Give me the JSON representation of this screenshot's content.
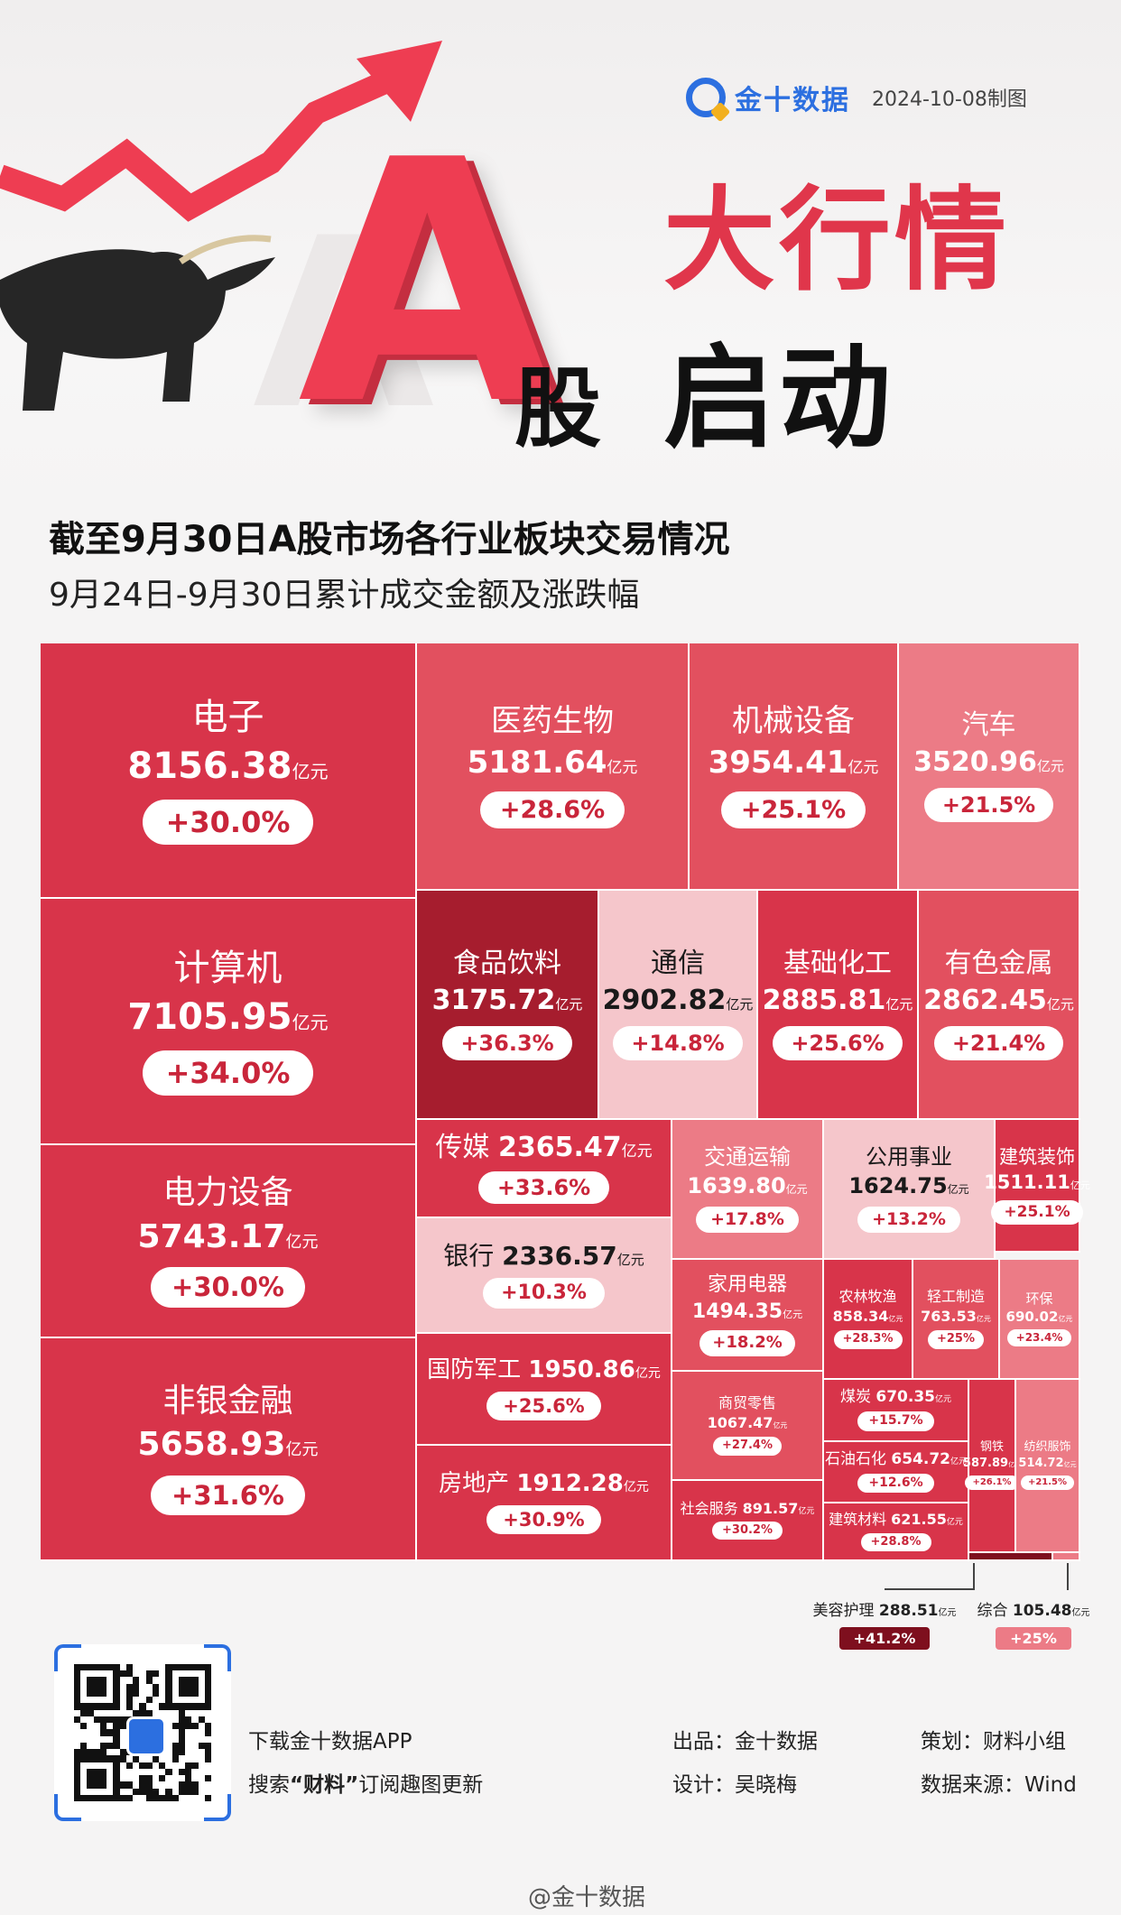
{
  "header": {
    "brand": "金十数据",
    "date": "2024-10-08制图",
    "big_letter": "A",
    "gu": "股",
    "title_line1": "大行情",
    "title_line2": "启动",
    "headline": "截至9月30日A股市场各行业板块交易情况",
    "subline": "9月24日-9月30日累计成交金额及涨跌幅"
  },
  "unit": "亿元",
  "colors": {
    "deep": "#a61d2e",
    "main": "#d8344a",
    "medium": "#e2505f",
    "light": "#ec7b86",
    "pale": "#f5c6cb",
    "darkest": "#7e0f1e"
  },
  "chart_data": {
    "type": "treemap",
    "title": "截至9月30日A股市场各行业板块交易情况",
    "subtitle": "9月24日-9月30日累计成交金额及涨跌幅",
    "value_unit": "亿元",
    "items": [
      {
        "name": "电子",
        "amount": 8156.38,
        "change": "+30.0%"
      },
      {
        "name": "计算机",
        "amount": 7105.95,
        "change": "+34.0%"
      },
      {
        "name": "电力设备",
        "amount": 5743.17,
        "change": "+30.0%"
      },
      {
        "name": "非银金融",
        "amount": 5658.93,
        "change": "+31.6%"
      },
      {
        "name": "医药生物",
        "amount": 5181.64,
        "change": "+28.6%"
      },
      {
        "name": "机械设备",
        "amount": 3954.41,
        "change": "+25.1%"
      },
      {
        "name": "汽车",
        "amount": 3520.96,
        "change": "+21.5%"
      },
      {
        "name": "食品饮料",
        "amount": 3175.72,
        "change": "+36.3%"
      },
      {
        "name": "通信",
        "amount": 2902.82,
        "change": "+14.8%"
      },
      {
        "name": "基础化工",
        "amount": 2885.81,
        "change": "+25.6%"
      },
      {
        "name": "有色金属",
        "amount": 2862.45,
        "change": "+21.4%"
      },
      {
        "name": "传媒",
        "amount": 2365.47,
        "change": "+33.6%"
      },
      {
        "name": "银行",
        "amount": 2336.57,
        "change": "+10.3%"
      },
      {
        "name": "国防军工",
        "amount": 1950.86,
        "change": "+25.6%"
      },
      {
        "name": "房地产",
        "amount": 1912.28,
        "change": "+30.9%"
      },
      {
        "name": "交通运输",
        "amount": 1639.8,
        "change": "+17.8%"
      },
      {
        "name": "公用事业",
        "amount": 1624.75,
        "change": "+13.2%"
      },
      {
        "name": "建筑装饰",
        "amount": 1511.11,
        "change": "+25.1%"
      },
      {
        "name": "家用电器",
        "amount": 1494.35,
        "change": "+18.2%"
      },
      {
        "name": "商贸零售",
        "amount": 1067.47,
        "change": "+27.4%"
      },
      {
        "name": "社会服务",
        "amount": 891.57,
        "change": "+30.2%"
      },
      {
        "name": "农林牧渔",
        "amount": 858.34,
        "change": "+28.3%"
      },
      {
        "name": "轻工制造",
        "amount": 763.53,
        "change": "+25%"
      },
      {
        "name": "环保",
        "amount": 690.02,
        "change": "+23.4%"
      },
      {
        "name": "煤炭",
        "amount": 670.35,
        "change": "+15.7%"
      },
      {
        "name": "石油石化",
        "amount": 654.72,
        "change": "+12.6%"
      },
      {
        "name": "建筑材料",
        "amount": 621.55,
        "change": "+28.8%"
      },
      {
        "name": "钢铁",
        "amount": 587.89,
        "change": "+26.1%"
      },
      {
        "name": "纺织服饰",
        "amount": 514.72,
        "change": "+21.5%"
      },
      {
        "name": "美容护理",
        "amount": 288.51,
        "change": "+41.2%"
      },
      {
        "name": "综合",
        "amount": 105.48,
        "change": "+25%"
      }
    ]
  },
  "footer": {
    "download": "下载金十数据APP",
    "search_pre": "搜索",
    "search_key": "“财料”",
    "search_post": "订阅趣图更新",
    "producer_label": "出品：",
    "producer": "金十数据",
    "planner_label": "策划：",
    "planner": "财料小组",
    "designer_label": "设计：",
    "designer": "吴晓梅",
    "source_label": "数据来源：",
    "source": "Wind",
    "weibo": "@金十数据"
  }
}
